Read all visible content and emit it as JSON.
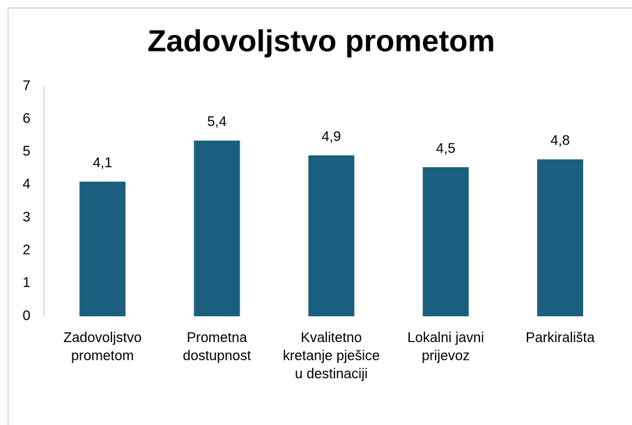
{
  "chart_data": {
    "type": "bar",
    "title": "Zadovoljstvo prometom",
    "categories": [
      "Zadovoljstvo prometom",
      "Prometna dostupnost",
      "Kvalitetno kretanje pješice u destinaciji",
      "Lokalni javni prijevoz",
      "Parkirališta"
    ],
    "values": [
      4.1,
      5.35,
      4.9,
      4.54,
      4.78
    ],
    "value_labels": [
      "4,1",
      "5,4",
      "4,9",
      "4,5",
      "4,8"
    ],
    "color": "#1a5f80",
    "ylim": [
      0,
      7
    ],
    "yticks": [
      0,
      1,
      2,
      3,
      4,
      5,
      6,
      7
    ],
    "grid": false
  }
}
